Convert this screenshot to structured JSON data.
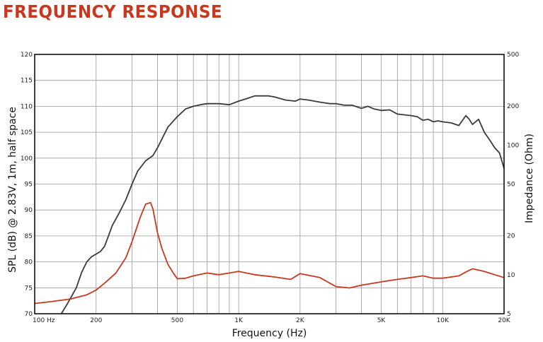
{
  "header": {
    "title": "FREQUENCY RESPONSE"
  },
  "chart_data": {
    "type": "line",
    "xlabel": "Frequency (Hz)",
    "ylabel": "SPL (dB) @ 2.83V, 1m, half space",
    "ylabel_right": "Impedance (Ohm)",
    "x_scale": "log",
    "xlim": [
      100,
      20000
    ],
    "ylim": [
      70,
      120
    ],
    "ylim_right": [
      5,
      500
    ],
    "y_right_scale": "log",
    "grid": true,
    "x_ticks": [
      {
        "value": 100,
        "label": "100 Hz"
      },
      {
        "value": 200,
        "label": "200"
      },
      {
        "value": 500,
        "label": "500"
      },
      {
        "value": 1000,
        "label": "1K"
      },
      {
        "value": 2000,
        "label": "2K"
      },
      {
        "value": 5000,
        "label": "5K"
      },
      {
        "value": 10000,
        "label": "10K"
      },
      {
        "value": 20000,
        "label": "20K"
      }
    ],
    "y_ticks": [
      {
        "value": 70,
        "label": "70"
      },
      {
        "value": 75,
        "label": "75"
      },
      {
        "value": 80,
        "label": "80"
      },
      {
        "value": 85,
        "label": "85"
      },
      {
        "value": 90,
        "label": "90"
      },
      {
        "value": 95,
        "label": "95"
      },
      {
        "value": 100,
        "label": "100"
      },
      {
        "value": 105,
        "label": "105"
      },
      {
        "value": 110,
        "label": "110"
      },
      {
        "value": 115,
        "label": "115"
      },
      {
        "value": 120,
        "label": "120"
      }
    ],
    "y_right_ticks": [
      {
        "value": 5,
        "label": "5"
      },
      {
        "value": 10,
        "label": "10"
      },
      {
        "value": 20,
        "label": "20"
      },
      {
        "value": 50,
        "label": "50"
      },
      {
        "value": 100,
        "label": "100"
      },
      {
        "value": 200,
        "label": "200"
      },
      {
        "value": 500,
        "label": "500"
      }
    ],
    "series": [
      {
        "axis": "left",
        "color": "#3a3a3a",
        "x": [
          135,
          145,
          160,
          170,
          180,
          190,
          200,
          210,
          220,
          230,
          240,
          260,
          280,
          300,
          320,
          350,
          380,
          400,
          450,
          500,
          550,
          600,
          650,
          700,
          800,
          900,
          1000,
          1100,
          1200,
          1300,
          1400,
          1500,
          1700,
          1900,
          2000,
          2200,
          2500,
          2800,
          3000,
          3300,
          3600,
          4000,
          4300,
          4600,
          5000,
          5500,
          6000,
          7000,
          7500,
          8000,
          8500,
          9000,
          9500,
          10000,
          11000,
          12000,
          13000,
          13500,
          14000,
          15000,
          16000,
          17000,
          18000,
          19000,
          20000
        ],
        "y": [
          70,
          72,
          75,
          78,
          80,
          81,
          81.5,
          82,
          83,
          85,
          87,
          89.5,
          92,
          95,
          97.5,
          99.5,
          100.5,
          102,
          106,
          108,
          109.5,
          110,
          110.3,
          110.5,
          110.5,
          110.3,
          111,
          111.5,
          112,
          112,
          112,
          111.8,
          111.2,
          111,
          111.4,
          111.2,
          110.8,
          110.5,
          110.5,
          110.2,
          110.2,
          109.6,
          110,
          109.5,
          109.2,
          109.3,
          108.5,
          108.2,
          108,
          107.3,
          107.5,
          107,
          107.2,
          107,
          106.8,
          106.3,
          108.2,
          107.5,
          106.5,
          107.5,
          105,
          103.5,
          102,
          101,
          98
        ]
      },
      {
        "axis": "right",
        "color": "#c8381e",
        "x": [
          100,
          120,
          150,
          180,
          200,
          220,
          250,
          280,
          300,
          330,
          350,
          370,
          380,
          400,
          420,
          450,
          480,
          500,
          550,
          600,
          700,
          800,
          900,
          1000,
          1200,
          1500,
          1800,
          2000,
          2500,
          3000,
          3500,
          4000,
          5000,
          6000,
          7000,
          8000,
          9000,
          10000,
          12000,
          13000,
          14000,
          16000,
          18000,
          20000
        ],
        "y": [
          6,
          6.2,
          6.5,
          7,
          7.6,
          8.6,
          10.3,
          13.5,
          18,
          28,
          35,
          36,
          32,
          21,
          16,
          12,
          10.2,
          9.3,
          9.4,
          9.8,
          10.3,
          10,
          10.3,
          10.6,
          10,
          9.6,
          9.2,
          10.2,
          9.5,
          8.1,
          7.9,
          8.3,
          8.8,
          9.2,
          9.5,
          9.8,
          9.4,
          9.4,
          9.8,
          10.5,
          11.1,
          10.6,
          10,
          9.5
        ]
      }
    ]
  }
}
